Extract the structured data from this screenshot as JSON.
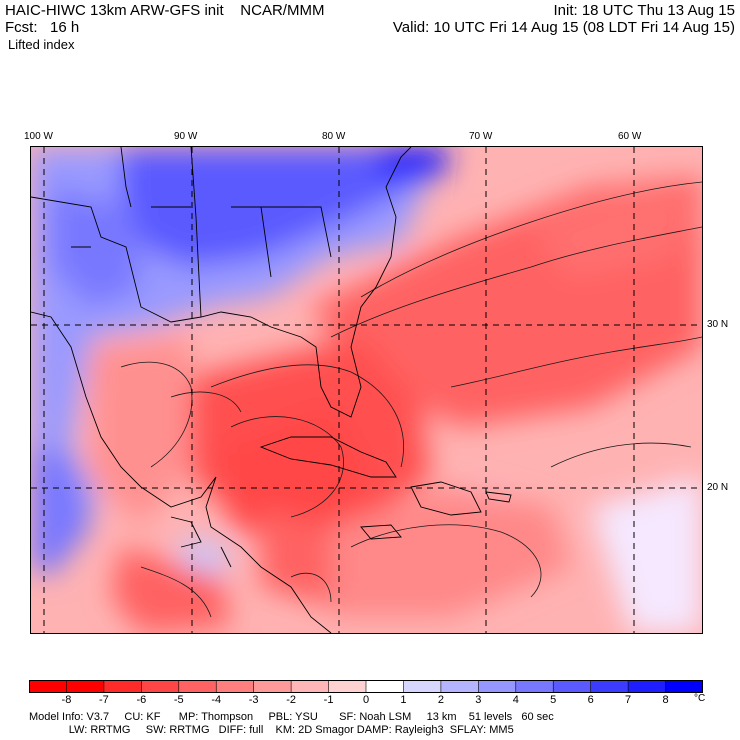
{
  "header": {
    "line1_left": "HAIC-HIWC 13km ARW-GFS init    NCAR/MMM",
    "line2_left": "Fcst:   16 h",
    "line1_right": "Init: 18 UTC Thu 13 Aug 15",
    "line2_right": "Valid: 10 UTC Fri 14 Aug 15 (08 LDT Fri 14 Aug 15)",
    "field": "Lifted index"
  },
  "axes": {
    "lon_labels": [
      "100 W",
      "90 W",
      "80 W",
      "70 W",
      "60 W"
    ],
    "lat_labels": [
      "30 N",
      "20 N"
    ]
  },
  "colorbar": {
    "ticks": [
      "-8",
      "-7",
      "-6",
      "-5",
      "-4",
      "-3",
      "-2",
      "-1",
      "0",
      "1",
      "2",
      "3",
      "4",
      "5",
      "6",
      "7",
      "8"
    ],
    "unit": "°C",
    "colors": [
      "#ff0000",
      "#ff2a2a",
      "#ff4646",
      "#ff6262",
      "#ff7e7e",
      "#ff9a9a",
      "#ffb6b6",
      "#ffd2d2",
      "#ffffff",
      "#d6d6ff",
      "#b4b4ff",
      "#9696ff",
      "#7878ff",
      "#5a5aff",
      "#3c3cff",
      "#1e1eff",
      "#0000ff"
    ]
  },
  "model_info": {
    "line1": "Model Info: V3.7     CU: KF      MP: Thompson     PBL: YSU       SF: Noah LSM     13 km    51 levels   60 sec",
    "line2": "             LW: RRTMG     SW: RRTMG   DIFF: full    KM: 2D Smagor DAMP: Rayleigh3  SFLAY: MM5"
  }
}
